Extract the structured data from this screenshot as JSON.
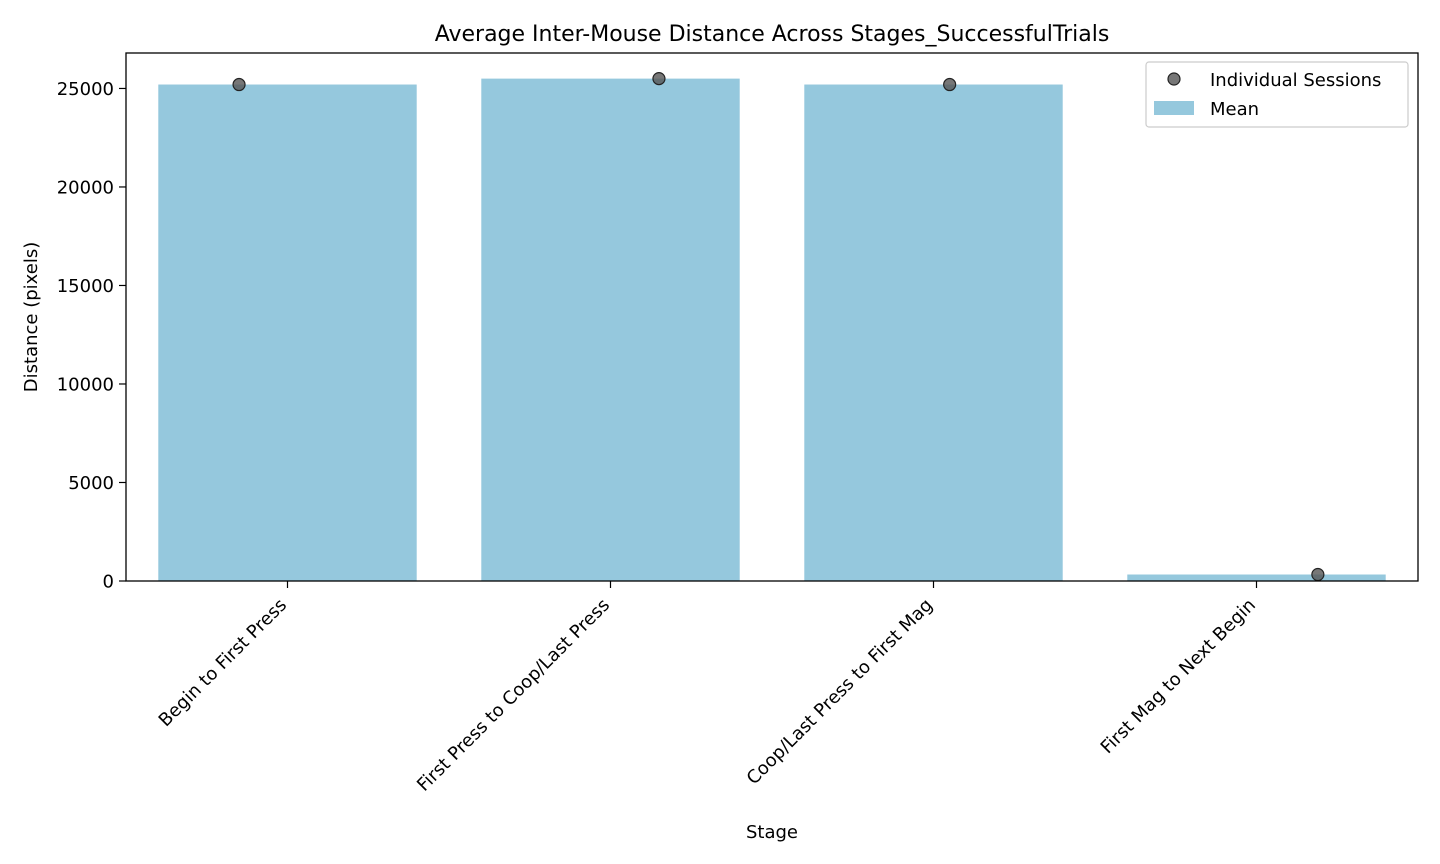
{
  "chart_data": {
    "type": "bar",
    "title": "Average Inter-Mouse Distance Across Stages_SuccessfulTrials",
    "xlabel": "Stage",
    "ylabel": "Distance (pixels)",
    "categories": [
      "Begin to First Press",
      "First Press to Coop/Last Press",
      "Coop/Last Press to First Mag",
      "First Mag to Next Begin"
    ],
    "series": [
      {
        "name": "Mean",
        "kind": "bar",
        "values": [
          25200,
          25500,
          25200,
          330
        ]
      },
      {
        "name": "Individual Sessions",
        "kind": "points",
        "values": [
          25200,
          25500,
          25200,
          330
        ],
        "jitter": [
          -0.15,
          0.15,
          0.05,
          0.19
        ]
      }
    ],
    "ylim": [
      0,
      26800
    ],
    "yticks": [
      0,
      5000,
      10000,
      15000,
      20000,
      25000
    ],
    "grid": false,
    "legend_position": "top-right",
    "colors": {
      "bar": "#95c8dd",
      "point": "#555555"
    }
  }
}
